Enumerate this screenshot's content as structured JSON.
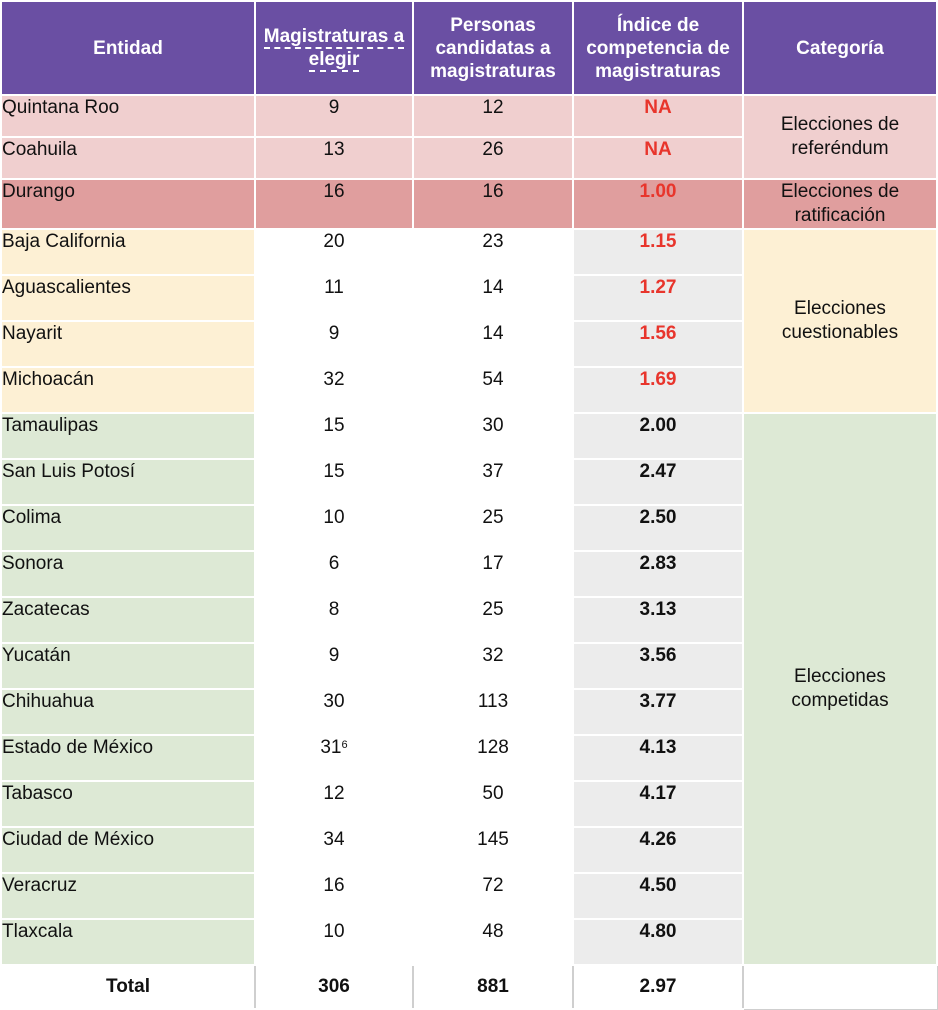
{
  "header": {
    "entidad": "Entidad",
    "magistraturas": "Magistraturas a elegir",
    "personas": "Personas candidatas a magistraturas",
    "indice": "Índice de competencia de magistraturas",
    "categoria": "Categoría"
  },
  "rows": [
    {
      "entidad": "Quintana Roo",
      "magistraturas": "9",
      "personas": "12",
      "indice": "NA"
    },
    {
      "entidad": "Coahuila",
      "magistraturas": "13",
      "personas": "26",
      "indice": "NA"
    },
    {
      "entidad": "Durango",
      "magistraturas": "16",
      "personas": "16",
      "indice": "1.00"
    },
    {
      "entidad": "Baja California",
      "magistraturas": "20",
      "personas": "23",
      "indice": "1.15"
    },
    {
      "entidad": "Aguascalientes",
      "magistraturas": "11",
      "personas": "14",
      "indice": "1.27"
    },
    {
      "entidad": "Nayarit",
      "magistraturas": "9",
      "personas": "14",
      "indice": "1.56"
    },
    {
      "entidad": "Michoacán",
      "magistraturas": "32",
      "personas": "54",
      "indice": "1.69"
    },
    {
      "entidad": "Tamaulipas",
      "magistraturas": "15",
      "personas": "30",
      "indice": "2.00"
    },
    {
      "entidad": "San Luis Potosí",
      "magistraturas": "15",
      "personas": "37",
      "indice": "2.47"
    },
    {
      "entidad": "Colima",
      "magistraturas": "10",
      "personas": "25",
      "indice": "2.50"
    },
    {
      "entidad": "Sonora",
      "magistraturas": "6",
      "personas": "17",
      "indice": "2.83"
    },
    {
      "entidad": "Zacatecas",
      "magistraturas": "8",
      "personas": "25",
      "indice": "3.13"
    },
    {
      "entidad": "Yucatán",
      "magistraturas": "9",
      "personas": "32",
      "indice": "3.56"
    },
    {
      "entidad": "Chihuahua",
      "magistraturas": "30",
      "personas": "113",
      "indice": "3.77"
    },
    {
      "entidad": "Estado de México",
      "magistraturas": "31",
      "magistraturas_note": "6",
      "personas": "128",
      "indice": "4.13"
    },
    {
      "entidad": "Tabasco",
      "magistraturas": "12",
      "personas": "50",
      "indice": "4.17"
    },
    {
      "entidad": "Ciudad de México",
      "magistraturas": "34",
      "personas": "145",
      "indice": "4.26"
    },
    {
      "entidad": "Veracruz",
      "magistraturas": "16",
      "personas": "72",
      "indice": "4.50"
    },
    {
      "entidad": "Tlaxcala",
      "magistraturas": "10",
      "personas": "48",
      "indice": "4.80"
    }
  ],
  "categories": {
    "referendum": "Elecciones de referéndum",
    "ratificacion": "Elecciones de ratificación",
    "cuestionables": "Elecciones cuestionables",
    "competidas": "Elecciones competidas"
  },
  "total": {
    "label": "Total",
    "magistraturas": "306",
    "personas": "881",
    "indice": "2.97"
  },
  "colors": {
    "header": "#6a4fa3",
    "referendum": "#f0cfcf",
    "ratificacion": "#e09e9e",
    "cuestionables": "#fdf0d4",
    "competidas": "#dde9d5",
    "highlight_text": "#e8352c"
  }
}
